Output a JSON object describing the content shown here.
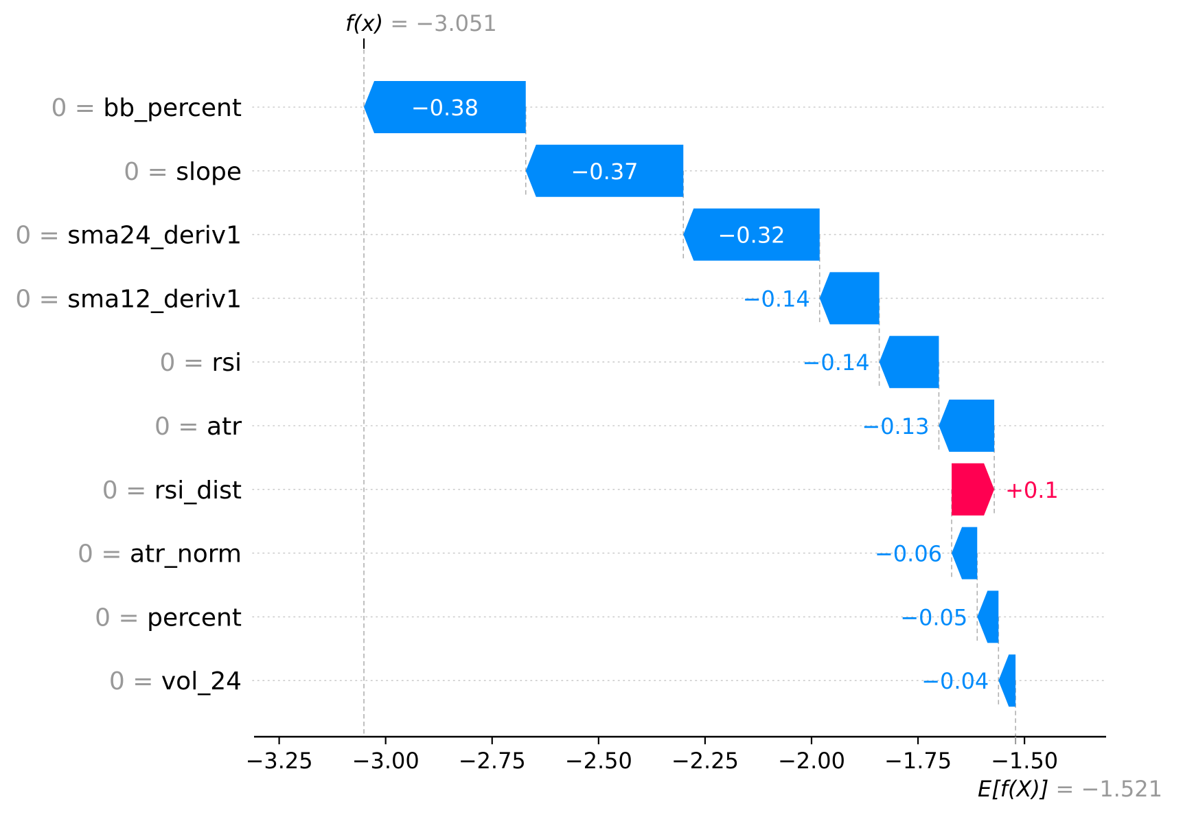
{
  "chart_data": {
    "type": "waterfall",
    "title": {
      "math": "f(x)",
      "rest": " = −3.051",
      "value": -3.051
    },
    "base": {
      "math": "E[f(X)]",
      "rest": " = −1.521",
      "value": -1.521
    },
    "x_axis": {
      "ticks": [
        -3.25,
        -3.0,
        -2.75,
        -2.5,
        -2.25,
        -2.0,
        -1.75,
        -1.5
      ],
      "tick_labels": [
        "−3.25",
        "−3.00",
        "−2.75",
        "−2.50",
        "−2.25",
        "−2.00",
        "−1.75",
        "−1.50"
      ]
    },
    "rows": [
      {
        "feature": "bb_percent",
        "prefix": "0 = ",
        "shap": -0.38,
        "label": "−0.38",
        "start": -2.671,
        "end": -3.051,
        "sign": "negative"
      },
      {
        "feature": "slope",
        "prefix": "0 = ",
        "shap": -0.37,
        "label": "−0.37",
        "start": -2.301,
        "end": -2.671,
        "sign": "negative"
      },
      {
        "feature": "sma24_deriv1",
        "prefix": "0 = ",
        "shap": -0.32,
        "label": "−0.32",
        "start": -1.981,
        "end": -2.301,
        "sign": "negative"
      },
      {
        "feature": "sma12_deriv1",
        "prefix": "0 = ",
        "shap": -0.14,
        "label": "−0.14",
        "start": -1.841,
        "end": -1.981,
        "sign": "negative"
      },
      {
        "feature": "rsi",
        "prefix": "0 = ",
        "shap": -0.14,
        "label": "−0.14",
        "start": -1.701,
        "end": -1.841,
        "sign": "negative"
      },
      {
        "feature": "atr",
        "prefix": "0 = ",
        "shap": -0.13,
        "label": "−0.13",
        "start": -1.571,
        "end": -1.701,
        "sign": "negative"
      },
      {
        "feature": "rsi_dist",
        "prefix": "0 = ",
        "shap": 0.1,
        "label": "+0.1",
        "start": -1.671,
        "end": -1.571,
        "sign": "positive"
      },
      {
        "feature": "atr_norm",
        "prefix": "0 = ",
        "shap": -0.06,
        "label": "−0.06",
        "start": -1.611,
        "end": -1.671,
        "sign": "negative"
      },
      {
        "feature": "percent",
        "prefix": "0 = ",
        "shap": -0.05,
        "label": "−0.05",
        "start": -1.561,
        "end": -1.611,
        "sign": "negative"
      },
      {
        "feature": "vol_24",
        "prefix": "0 = ",
        "shap": -0.04,
        "label": "−0.04",
        "start": -1.521,
        "end": -1.561,
        "sign": "negative"
      }
    ],
    "colors": {
      "positive": "#ff0051",
      "negative": "#008bfb",
      "text": "#000000",
      "muted": "#999999",
      "connector": "#b0b0b0",
      "gridline": "#cccccc",
      "axis": "#000000",
      "value_inside": "#ffffff"
    }
  }
}
